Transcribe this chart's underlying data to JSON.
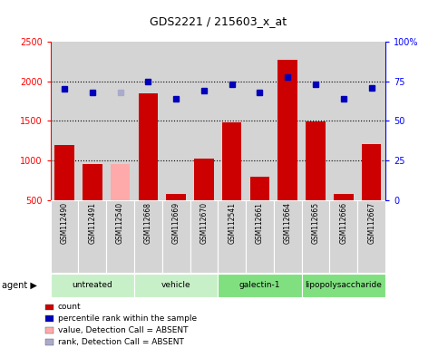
{
  "title": "GDS2221 / 215603_x_at",
  "samples": [
    "GSM112490",
    "GSM112491",
    "GSM112540",
    "GSM112668",
    "GSM112669",
    "GSM112670",
    "GSM112541",
    "GSM112661",
    "GSM112664",
    "GSM112665",
    "GSM112666",
    "GSM112667"
  ],
  "counts": [
    1200,
    950,
    950,
    1850,
    580,
    1020,
    1480,
    790,
    2270,
    1490,
    575,
    1210
  ],
  "absent": [
    false,
    false,
    true,
    false,
    false,
    false,
    false,
    false,
    false,
    false,
    false,
    false
  ],
  "percentile_ranks": [
    70,
    68,
    68,
    75,
    64,
    69,
    73,
    68,
    78,
    73,
    64,
    71
  ],
  "rank_absent": [
    false,
    false,
    true,
    false,
    false,
    false,
    false,
    false,
    false,
    false,
    false,
    false
  ],
  "groups": [
    {
      "label": "untreated",
      "start": 0,
      "end": 3,
      "color": "#c8f0c8"
    },
    {
      "label": "vehicle",
      "start": 3,
      "end": 6,
      "color": "#c8f0c8"
    },
    {
      "label": "galectin-1",
      "start": 6,
      "end": 9,
      "color": "#80e080"
    },
    {
      "label": "lipopolysaccharide",
      "start": 9,
      "end": 12,
      "color": "#80e080"
    }
  ],
  "bar_color_normal": "#cc0000",
  "bar_color_absent": "#ffaaaa",
  "dot_color_normal": "#0000bb",
  "dot_color_absent": "#aaaacc",
  "ylim_left": [
    500,
    2500
  ],
  "ylim_right": [
    0,
    100
  ],
  "yticks_left": [
    500,
    1000,
    1500,
    2000,
    2500
  ],
  "yticks_right": [
    0,
    25,
    50,
    75,
    100
  ],
  "background_color": "#d4d4d4",
  "legend_items": [
    {
      "color": "#cc0000",
      "label": "count"
    },
    {
      "color": "#0000bb",
      "label": "percentile rank within the sample"
    },
    {
      "color": "#ffaaaa",
      "label": "value, Detection Call = ABSENT"
    },
    {
      "color": "#aaaacc",
      "label": "rank, Detection Call = ABSENT"
    }
  ]
}
